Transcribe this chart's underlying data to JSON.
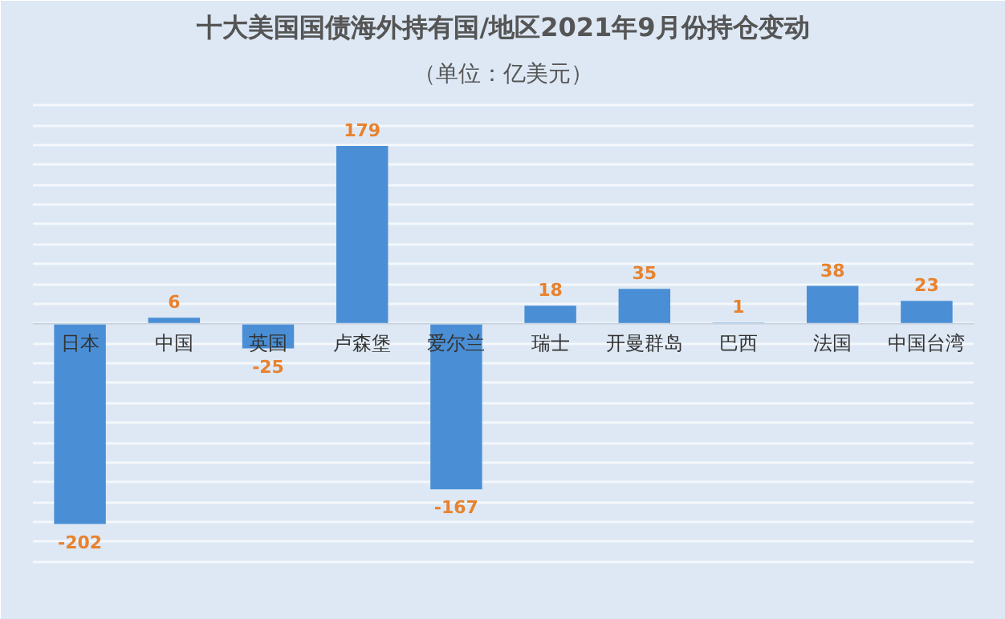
{
  "chart_data": {
    "type": "bar",
    "title": "十大美国国债海外持有国/地区2021年9月份持仓变动",
    "subtitle": "（单位：亿美元）",
    "categories": [
      "日本",
      "中国",
      "英国",
      "卢森堡",
      "爱尔兰",
      "瑞士",
      "开曼群岛",
      "巴西",
      "法国",
      "中国台湾"
    ],
    "values": [
      -202,
      6,
      -25,
      179,
      -167,
      18,
      35,
      1,
      38,
      23
    ],
    "color": "#4a8fd6",
    "data_labels": true,
    "ylim": [
      -250,
      230
    ],
    "yticks": [
      {
        "value": -240,
        "label": null
      },
      {
        "value": -220,
        "label": null
      },
      {
        "value": -200,
        "label": null
      },
      {
        "value": -180,
        "label": null
      },
      {
        "value": -160,
        "label": null
      },
      {
        "value": -140,
        "label": null
      },
      {
        "value": -120,
        "label": null
      },
      {
        "value": -100,
        "label": null
      },
      {
        "value": -80,
        "label": null
      },
      {
        "value": -60,
        "label": null
      },
      {
        "value": -40,
        "label": null
      },
      {
        "value": -20,
        "label": null
      },
      {
        "value": 0,
        "label": null
      },
      {
        "value": 20,
        "label": null
      },
      {
        "value": 40,
        "label": null
      },
      {
        "value": 60,
        "label": null
      },
      {
        "value": 80,
        "label": null
      },
      {
        "value": 100,
        "label": null
      },
      {
        "value": 120,
        "label": null
      },
      {
        "value": 140,
        "label": null
      },
      {
        "value": 160,
        "label": null
      },
      {
        "value": 180,
        "label": null
      },
      {
        "value": 200,
        "label": null
      },
      {
        "value": 220,
        "label": null
      }
    ],
    "grid": "y"
  }
}
